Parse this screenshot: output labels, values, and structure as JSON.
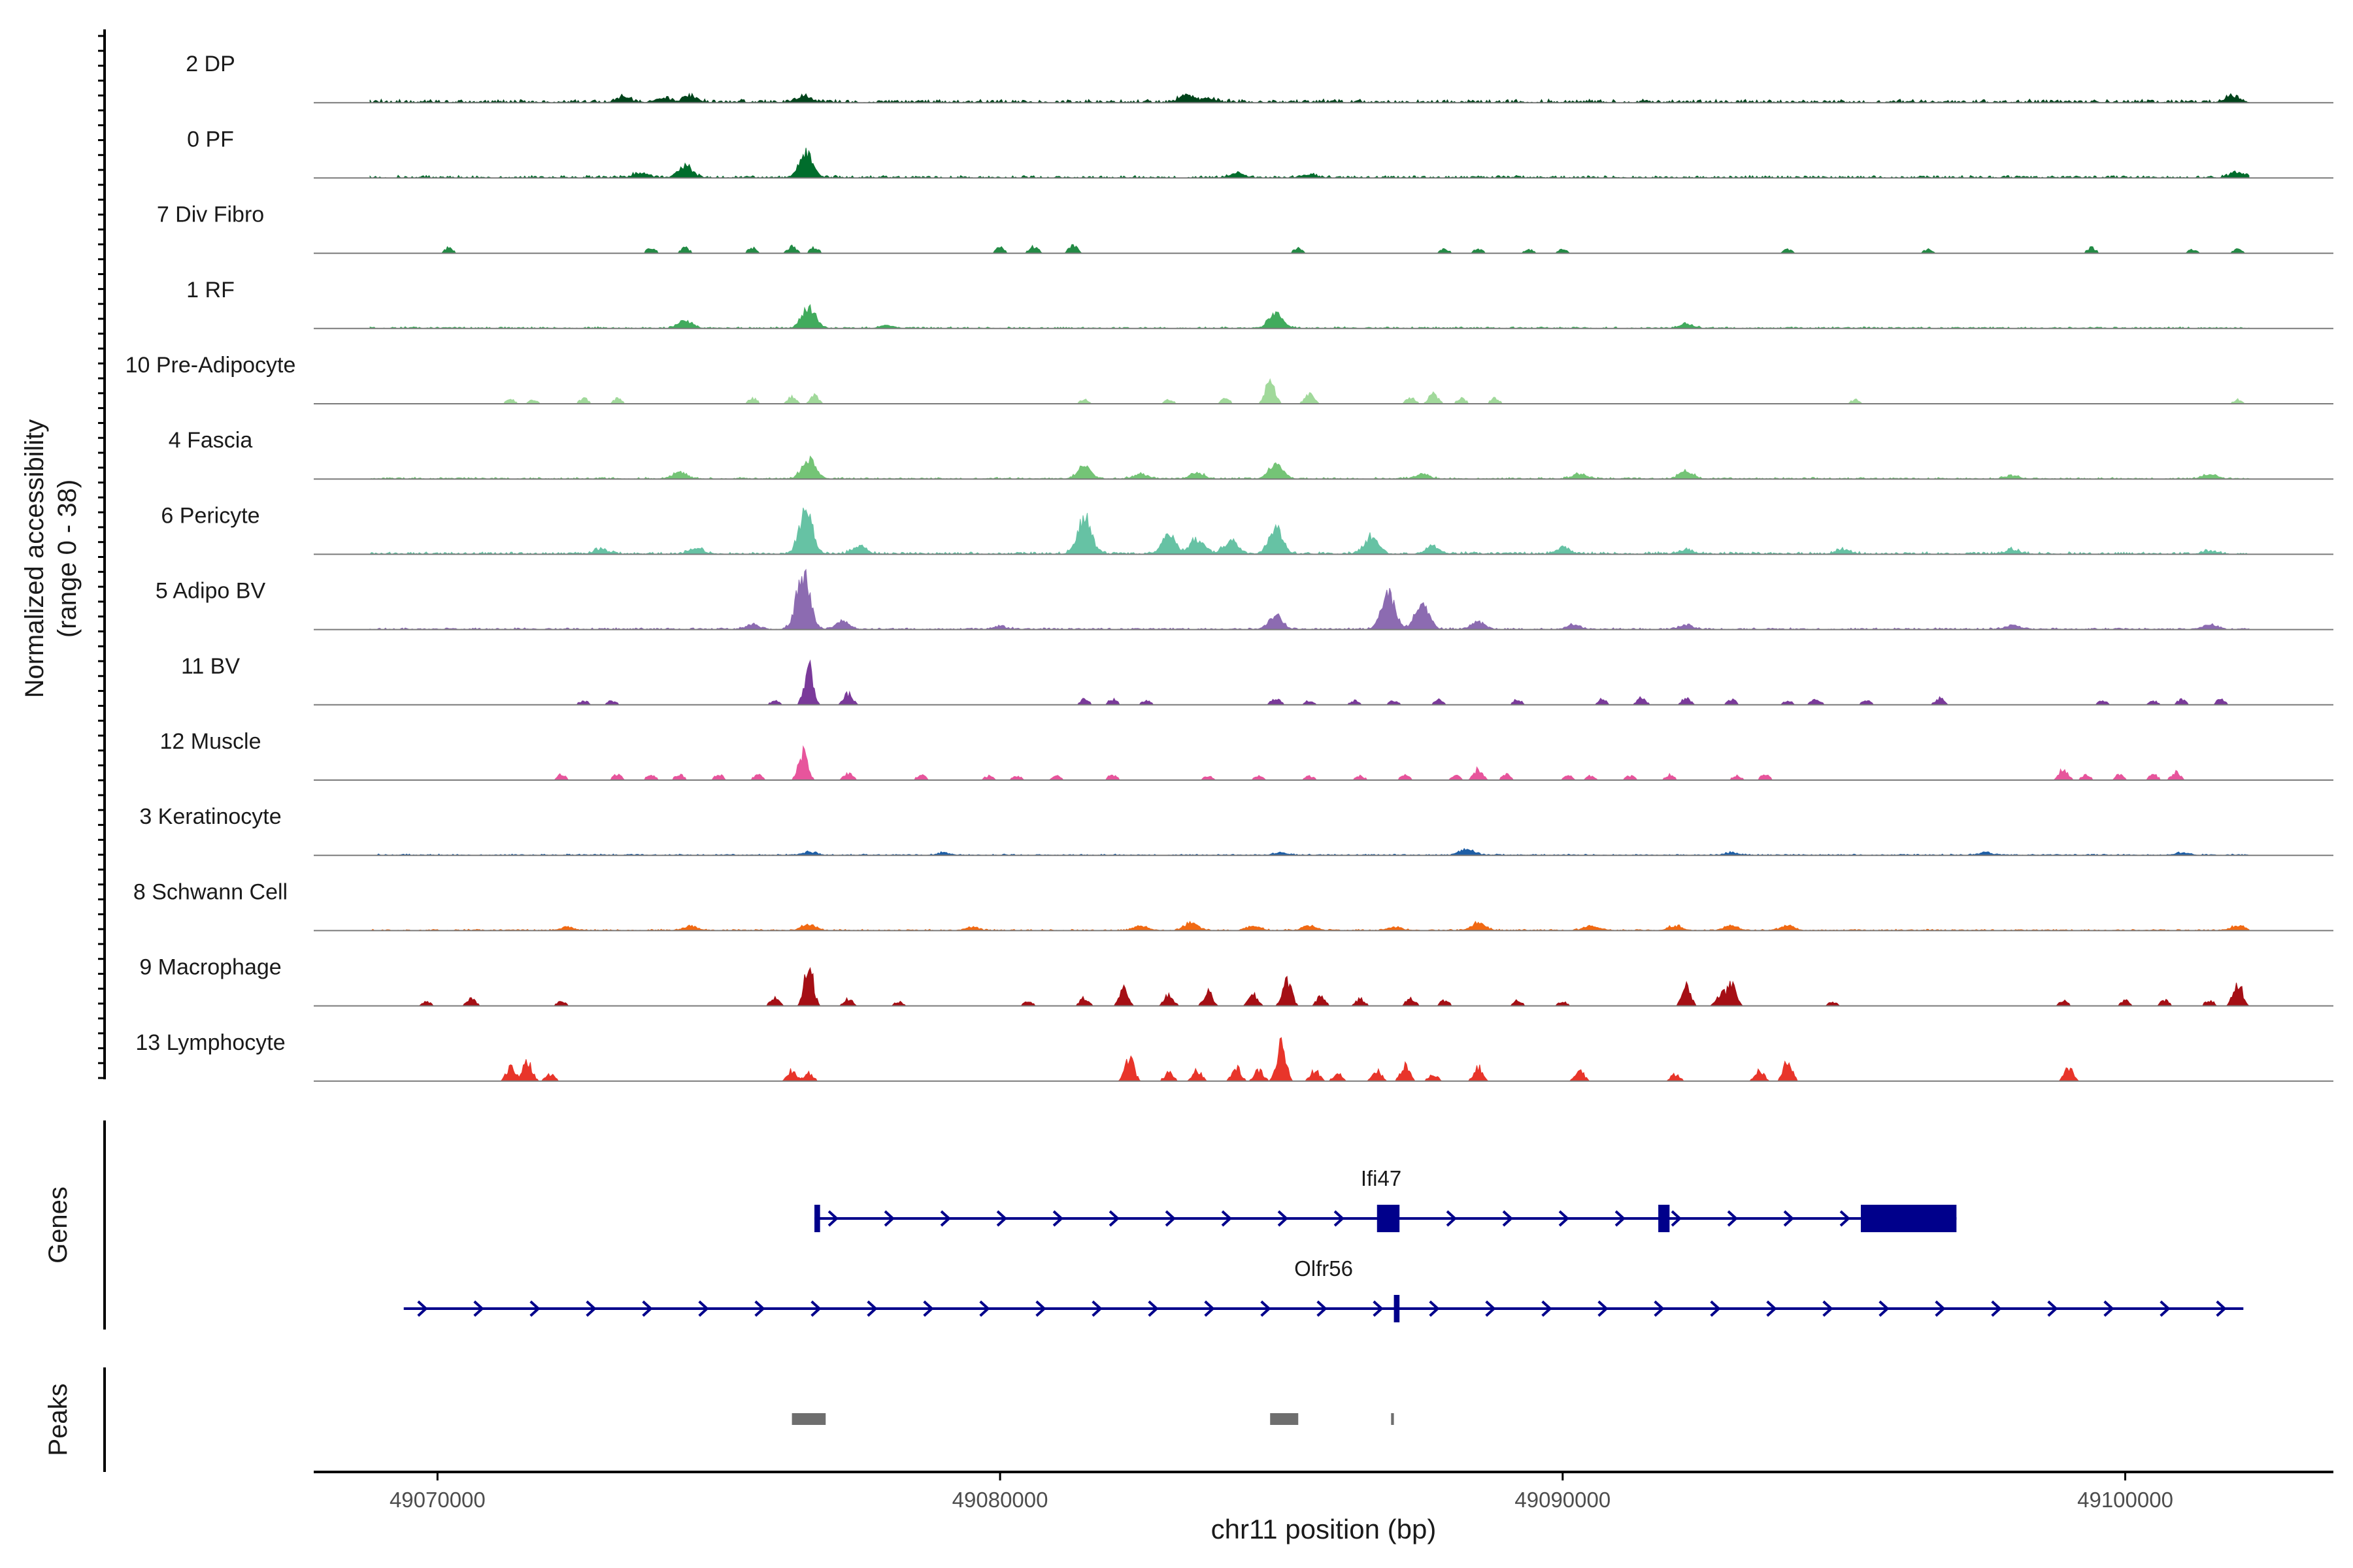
{
  "chart_data": {
    "type": "coverage-track",
    "ylabel_line1": "Normalized accessibility",
    "ylabel_line2": "(range 0 - 38)",
    "y_range": [
      0,
      38
    ],
    "xlabel": "chr11 position (bp)",
    "x_range": [
      49067800,
      49103700
    ],
    "x_ticks": [
      {
        "value": 49070000,
        "label": "49070000"
      },
      {
        "value": 49080000,
        "label": "49080000"
      },
      {
        "value": 49090000,
        "label": "49090000"
      },
      {
        "value": 49100000,
        "label": "49100000"
      }
    ],
    "tracks": [
      {
        "name": "2 DP",
        "color": "#00441b",
        "baseline": 2,
        "peaks": [
          [
            49073300,
            3
          ],
          [
            49074000,
            3
          ],
          [
            49074500,
            4
          ],
          [
            49076500,
            4
          ],
          [
            49083300,
            5
          ],
          [
            49083700,
            3
          ],
          [
            49101900,
            4
          ]
        ]
      },
      {
        "name": "0 PF",
        "color": "#006d2c",
        "baseline": 1.5,
        "peaks": [
          [
            49073600,
            3
          ],
          [
            49074400,
            8
          ],
          [
            49076550,
            16
          ],
          [
            49084200,
            3
          ],
          [
            49085500,
            2
          ],
          [
            49102000,
            4
          ]
        ]
      },
      {
        "name": "7 Div Fibro",
        "color": "#238b45",
        "sparse": true,
        "peaks": [
          [
            49070200,
            4
          ],
          [
            49073800,
            4
          ],
          [
            49074400,
            4
          ],
          [
            49075600,
            4
          ],
          [
            49076300,
            5
          ],
          [
            49076700,
            4
          ],
          [
            49080000,
            4
          ],
          [
            49080600,
            5
          ],
          [
            49081300,
            6
          ],
          [
            49085300,
            4
          ],
          [
            49087900,
            3
          ],
          [
            49088500,
            3
          ],
          [
            49089400,
            3
          ],
          [
            49090000,
            3
          ],
          [
            49094000,
            3
          ],
          [
            49096500,
            3
          ],
          [
            49099400,
            4
          ],
          [
            49101200,
            3
          ],
          [
            49102000,
            3
          ]
        ]
      },
      {
        "name": "1 RF",
        "color": "#41ab5d",
        "baseline": 1,
        "peaks": [
          [
            49074400,
            5
          ],
          [
            49076600,
            14
          ],
          [
            49078000,
            2
          ],
          [
            49084900,
            10
          ],
          [
            49092200,
            3
          ]
        ]
      },
      {
        "name": "10 Pre-Adipocyte",
        "color": "#a1d99b",
        "sparse": true,
        "peaks": [
          [
            49071300,
            3
          ],
          [
            49071700,
            3
          ],
          [
            49072600,
            4
          ],
          [
            49073200,
            4
          ],
          [
            49075600,
            4
          ],
          [
            49076300,
            5
          ],
          [
            49076700,
            6
          ],
          [
            49081500,
            3
          ],
          [
            49083000,
            3
          ],
          [
            49084000,
            4
          ],
          [
            49084800,
            20
          ],
          [
            49085500,
            8
          ],
          [
            49087300,
            5
          ],
          [
            49087700,
            8
          ],
          [
            49088200,
            4
          ],
          [
            49088800,
            4
          ],
          [
            49095200,
            3
          ],
          [
            49102000,
            3
          ]
        ]
      },
      {
        "name": "4 Fascia",
        "color": "#74c476",
        "baseline": 1,
        "peaks": [
          [
            49074300,
            4
          ],
          [
            49076600,
            13
          ],
          [
            49081500,
            8
          ],
          [
            49082500,
            3
          ],
          [
            49083500,
            4
          ],
          [
            49084900,
            10
          ],
          [
            49087500,
            3
          ],
          [
            49090300,
            3
          ],
          [
            49092200,
            5
          ],
          [
            49098000,
            2
          ],
          [
            49101500,
            3
          ]
        ]
      },
      {
        "name": "6 Pericyte",
        "color": "#66c2a4",
        "baseline": 1.5,
        "peaks": [
          [
            49072900,
            3
          ],
          [
            49074600,
            4
          ],
          [
            49076550,
            28
          ],
          [
            49077500,
            5
          ],
          [
            49081500,
            25
          ],
          [
            49083000,
            12
          ],
          [
            49083500,
            10
          ],
          [
            49084100,
            9
          ],
          [
            49084900,
            18
          ],
          [
            49086600,
            11
          ],
          [
            49087700,
            5
          ],
          [
            49090000,
            4
          ],
          [
            49092200,
            3
          ],
          [
            49095000,
            3
          ],
          [
            49098000,
            3
          ],
          [
            49101500,
            2
          ]
        ]
      },
      {
        "name": "5 Adipo BV",
        "color": "#8c6bb1",
        "baseline": 1,
        "peaks": [
          [
            49075600,
            3
          ],
          [
            49076500,
            36
          ],
          [
            49077200,
            5
          ],
          [
            49080000,
            2
          ],
          [
            49084900,
            9
          ],
          [
            49086900,
            23
          ],
          [
            49087500,
            18
          ],
          [
            49088500,
            5
          ],
          [
            49090200,
            3
          ],
          [
            49092200,
            3
          ],
          [
            49098000,
            3
          ],
          [
            49101500,
            3
          ]
        ]
      },
      {
        "name": "11 BV",
        "color": "#7a3a9a",
        "sparse": true,
        "peaks": [
          [
            49072600,
            3
          ],
          [
            49073100,
            3
          ],
          [
            49076000,
            3
          ],
          [
            49076600,
            28
          ],
          [
            49077300,
            8
          ],
          [
            49081500,
            4
          ],
          [
            49082000,
            4
          ],
          [
            49082600,
            3
          ],
          [
            49084900,
            5
          ],
          [
            49085500,
            3
          ],
          [
            49086300,
            3
          ],
          [
            49087000,
            3
          ],
          [
            49087800,
            4
          ],
          [
            49089200,
            4
          ],
          [
            49090700,
            4
          ],
          [
            49091400,
            5
          ],
          [
            49092200,
            5
          ],
          [
            49093000,
            4
          ],
          [
            49094000,
            3
          ],
          [
            49094500,
            5
          ],
          [
            49095400,
            3
          ],
          [
            49096700,
            5
          ],
          [
            49099600,
            3
          ],
          [
            49100500,
            3
          ],
          [
            49101000,
            4
          ],
          [
            49101700,
            4
          ]
        ]
      },
      {
        "name": "12 Muscle",
        "color": "#e7559c",
        "sparse": true,
        "peaks": [
          [
            49072200,
            4
          ],
          [
            49073200,
            4
          ],
          [
            49073800,
            4
          ],
          [
            49074300,
            4
          ],
          [
            49075000,
            4
          ],
          [
            49075700,
            4
          ],
          [
            49076500,
            22
          ],
          [
            49077300,
            5
          ],
          [
            49078600,
            4
          ],
          [
            49079800,
            3
          ],
          [
            49080300,
            3
          ],
          [
            49081000,
            3
          ],
          [
            49082000,
            4
          ],
          [
            49083700,
            3
          ],
          [
            49084600,
            3
          ],
          [
            49085500,
            3
          ],
          [
            49086400,
            3
          ],
          [
            49087200,
            4
          ],
          [
            49088100,
            3
          ],
          [
            49088500,
            8
          ],
          [
            49089000,
            4
          ],
          [
            49090100,
            3
          ],
          [
            49090500,
            3
          ],
          [
            49091200,
            3
          ],
          [
            49091900,
            4
          ],
          [
            49093100,
            3
          ],
          [
            49093600,
            4
          ],
          [
            49098900,
            8
          ],
          [
            49099300,
            4
          ],
          [
            49099900,
            4
          ],
          [
            49100500,
            4
          ],
          [
            49100900,
            6
          ]
        ]
      },
      {
        "name": "3 Keratinocyte",
        "color": "#1f5fa6",
        "baseline": 0.8,
        "peaks": [
          [
            49076600,
            2
          ],
          [
            49079000,
            1.5
          ],
          [
            49085000,
            1.5
          ],
          [
            49088300,
            4
          ],
          [
            49093000,
            1.5
          ],
          [
            49097500,
            1.5
          ],
          [
            49101000,
            1.5
          ]
        ]
      },
      {
        "name": "8 Schwann Cell",
        "color": "#f16913",
        "baseline": 0.8,
        "peaks": [
          [
            49072300,
            2
          ],
          [
            49074500,
            3
          ],
          [
            49076600,
            4
          ],
          [
            49079500,
            2
          ],
          [
            49082500,
            3
          ],
          [
            49083400,
            5
          ],
          [
            49084500,
            3
          ],
          [
            49085500,
            3
          ],
          [
            49087000,
            2
          ],
          [
            49088500,
            5
          ],
          [
            49090500,
            3
          ],
          [
            49092000,
            3
          ],
          [
            49093000,
            3
          ],
          [
            49094000,
            3
          ],
          [
            49102000,
            3
          ]
        ]
      },
      {
        "name": "9 Macrophage",
        "color": "#a50f15",
        "sparse": true,
        "peaks": [
          [
            49069800,
            3
          ],
          [
            49070600,
            5
          ],
          [
            49072200,
            3
          ],
          [
            49076000,
            6
          ],
          [
            49076600,
            30
          ],
          [
            49077300,
            5
          ],
          [
            49078200,
            3
          ],
          [
            49080500,
            4
          ],
          [
            49081500,
            6
          ],
          [
            49082200,
            12
          ],
          [
            49083000,
            8
          ],
          [
            49083700,
            10
          ],
          [
            49084500,
            8
          ],
          [
            49085100,
            20
          ],
          [
            49085700,
            7
          ],
          [
            49086400,
            5
          ],
          [
            49087300,
            6
          ],
          [
            49087900,
            4
          ],
          [
            49089200,
            4
          ],
          [
            49090000,
            3
          ],
          [
            49092200,
            14
          ],
          [
            49092800,
            8
          ],
          [
            49093000,
            18
          ],
          [
            49094800,
            3
          ],
          [
            49098900,
            4
          ],
          [
            49100000,
            4
          ],
          [
            49100700,
            4
          ],
          [
            49101500,
            4
          ],
          [
            49102000,
            18
          ]
        ]
      },
      {
        "name": "13 Lymphocyte",
        "color": "#e8352a",
        "sparse": true,
        "peaks": [
          [
            49071300,
            10
          ],
          [
            49071600,
            15
          ],
          [
            49072000,
            5
          ],
          [
            49076300,
            8
          ],
          [
            49076600,
            6
          ],
          [
            49082300,
            18
          ],
          [
            49083000,
            6
          ],
          [
            49083500,
            8
          ],
          [
            49084200,
            10
          ],
          [
            49084600,
            8
          ],
          [
            49085000,
            28
          ],
          [
            49085600,
            8
          ],
          [
            49086000,
            6
          ],
          [
            49086700,
            8
          ],
          [
            49087200,
            12
          ],
          [
            49087700,
            5
          ],
          [
            49088500,
            10
          ],
          [
            49090300,
            8
          ],
          [
            49092000,
            5
          ],
          [
            49093500,
            8
          ],
          [
            49094000,
            14
          ],
          [
            49099000,
            10
          ]
        ]
      }
    ],
    "genes_label": "Genes",
    "genes": [
      {
        "name": "Ifi47",
        "start": 49076700,
        "end": 49097000,
        "exons": [
          [
            49076700,
            49076800
          ],
          [
            49086700,
            49087100
          ],
          [
            49091700,
            49091900
          ],
          [
            49095300,
            49097000
          ]
        ]
      },
      {
        "name": "Olfr56",
        "start": 49069400,
        "end": 49102100,
        "exons": [
          [
            49087000,
            49087100
          ]
        ]
      }
    ],
    "peaks_label": "Peaks",
    "peak_regions": [
      [
        49076300,
        49076900
      ],
      [
        49084800,
        49085300
      ],
      [
        49086950,
        49087000
      ]
    ]
  }
}
